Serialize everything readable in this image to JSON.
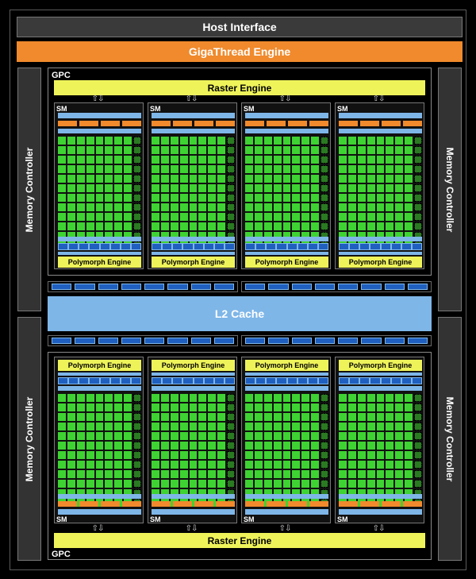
{
  "host_interface": "Host Interface",
  "gigathread_engine": "GigaThread Engine",
  "memory_controller": "Memory Controller",
  "l2_cache": "L2 Cache",
  "gpc_label": "GPC",
  "raster_engine": "Raster Engine",
  "sm_label": "SM",
  "polymorph_engine": "Polymorph Engine",
  "colors": {
    "background": "#000000",
    "host": "#3a3a3a",
    "gigathread": "#f08a2c",
    "raster": "#eef35a",
    "cuda_core": "#3ed332",
    "cache_blue": "#7eb6e8",
    "texture_unit": "#1f5fbf"
  },
  "arrow_glyph": "⇧⇩"
}
